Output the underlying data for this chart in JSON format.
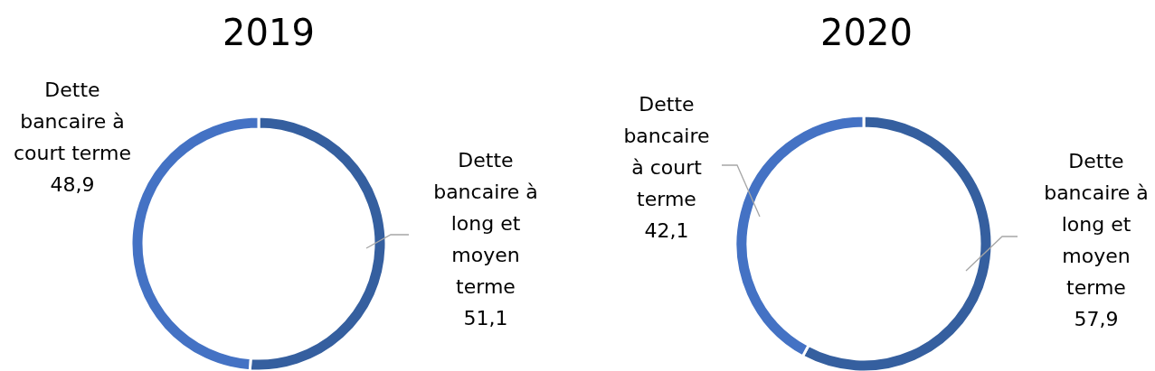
{
  "chart_data": [
    {
      "type": "donut",
      "title": "2019",
      "categories": [
        "Dette bancaire à long et moyen terme",
        "Dette bancaire à court terme"
      ],
      "values": [
        51.1,
        48.9
      ],
      "value_labels": [
        "51,1",
        "48,9"
      ],
      "colors": [
        "#355f9f",
        "#4472c4"
      ]
    },
    {
      "type": "donut",
      "title": "2020",
      "categories": [
        "Dette bancaire à long et moyen terme",
        "Dette bancaire à court terme"
      ],
      "values": [
        57.9,
        42.1
      ],
      "value_labels": [
        "57,9",
        "42,1"
      ],
      "colors": [
        "#355f9f",
        "#4472c4"
      ]
    }
  ]
}
